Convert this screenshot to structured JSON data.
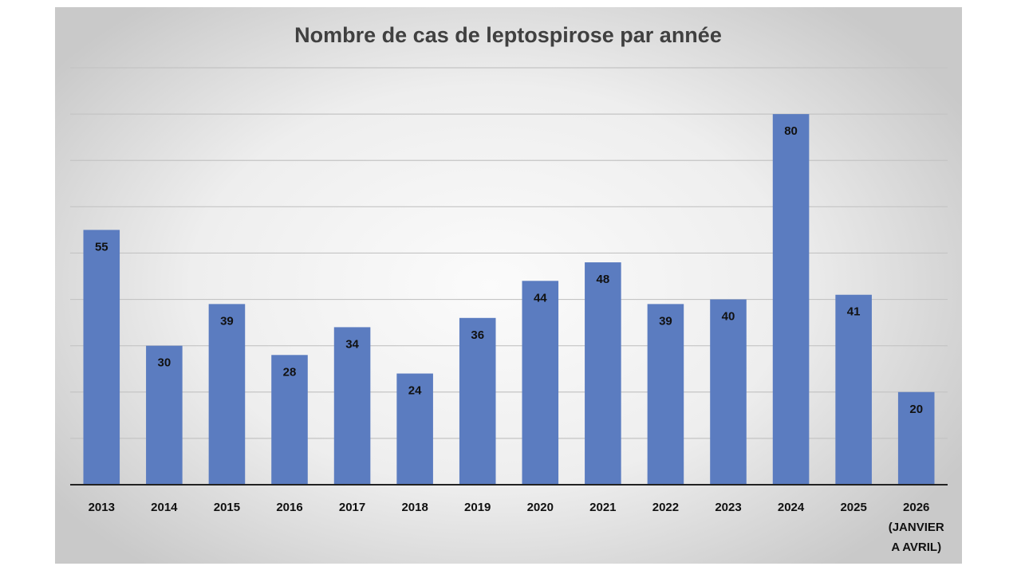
{
  "chart_data": {
    "type": "bar",
    "title": "Nombre de cas de leptospirose par année",
    "xlabel": "",
    "ylabel": "",
    "categories": [
      [
        "2013"
      ],
      [
        "2014"
      ],
      [
        "2015"
      ],
      [
        "2016"
      ],
      [
        "2017"
      ],
      [
        "2018"
      ],
      [
        "2019"
      ],
      [
        "2020"
      ],
      [
        "2021"
      ],
      [
        "2022"
      ],
      [
        "2023"
      ],
      [
        "2024"
      ],
      [
        "2025"
      ],
      [
        "2026",
        "(JANVIER",
        "A AVRIL)"
      ]
    ],
    "values": [
      55,
      30,
      39,
      28,
      34,
      24,
      36,
      44,
      48,
      39,
      40,
      80,
      41,
      20
    ],
    "ylim": [
      0,
      90
    ],
    "y_gridline_step": 10,
    "grid": true,
    "legend": "none",
    "bar_color": "#5b7cc0"
  }
}
